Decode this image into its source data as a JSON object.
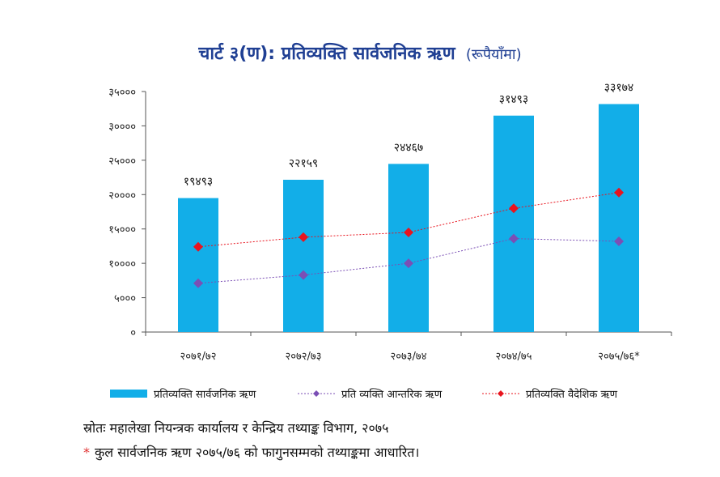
{
  "title": {
    "main": "चार्ट ३(ण): प्रतिव्यक्ति सार्वजनिक ऋण",
    "unit": "(रूपैयाँमा)"
  },
  "chart_data": {
    "type": "bar",
    "categories": [
      "२०७१/७२",
      "२०७२/७३",
      "२०७३/७४",
      "२०७४/७५",
      "२०७५/७६*"
    ],
    "series": [
      {
        "name": "प्रतिव्यक्ति सार्वजनिक ऋण",
        "kind": "bar",
        "color": "#12aee8",
        "values": [
          19493,
          22159,
          24467,
          31493,
          33174
        ],
        "labels": [
          "१९४९३",
          "२२१५९",
          "२४४६७",
          "३१४९३",
          "३३१७४"
        ]
      },
      {
        "name": "प्रति व्यक्ति आन्तरिक ऋण",
        "kind": "line",
        "color": "#7b4fb5",
        "values": [
          7100,
          8300,
          10000,
          13600,
          13200
        ]
      },
      {
        "name": "प्रतिव्यक्ति वैदेशिक ऋण",
        "kind": "line",
        "color": "#e8141e",
        "values": [
          12400,
          13800,
          14500,
          18000,
          20300
        ]
      }
    ],
    "ylim": [
      0,
      35000
    ],
    "yticks": [
      0,
      5000,
      10000,
      15000,
      20000,
      25000,
      30000,
      35000
    ],
    "ytick_labels": [
      "०",
      "५०००",
      "१००००",
      "१५०००",
      "२००००",
      "२५०००",
      "३००००",
      "३५०००"
    ],
    "grid": false,
    "legend": "bottom"
  },
  "notes": {
    "source": "स्रोतः महालेखा नियन्त्रक कार्यालय र केन्द्रिय तथ्याङ्क विभाग, २०७५",
    "footnote_mark": "*",
    "footnote": "कुल सार्वजनिक ऋण २०७५/७६ को फागुनसम्मको तथ्याङ्कमा आधारित।"
  }
}
